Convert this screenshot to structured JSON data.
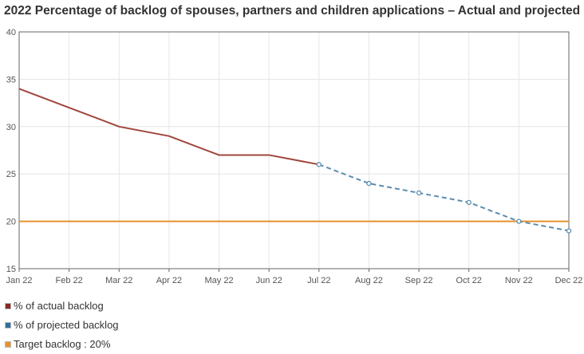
{
  "title": "2022 Percentage of backlog of spouses, partners and children applications – Actual and projected",
  "chart_data": {
    "type": "line",
    "categories": [
      "Jan 22",
      "Feb 22",
      "Mar 22",
      "Apr 22",
      "May 22",
      "Jun 22",
      "Jul 22",
      "Aug 22",
      "Sep 22",
      "Oct 22",
      "Nov 22",
      "Dec 22"
    ],
    "ylim": [
      15,
      40
    ],
    "yticks": [
      15,
      20,
      25,
      30,
      35,
      40
    ],
    "grid": true,
    "series": [
      {
        "name": "% of actual backlog",
        "color": "#a0463e",
        "style": "solid",
        "values": [
          34,
          32,
          30,
          29,
          27,
          27,
          26,
          null,
          null,
          null,
          null,
          null
        ]
      },
      {
        "name": "% of projected backlog",
        "color": "#5b8db0",
        "style": "dashed",
        "markers": true,
        "values": [
          null,
          null,
          null,
          null,
          null,
          null,
          26,
          24,
          23,
          22,
          20,
          19
        ]
      }
    ],
    "target": {
      "label": "Target backlog : 20%",
      "value": 20,
      "color": "#e8912c"
    }
  },
  "legend": {
    "actual_label": "% of actual backlog",
    "actual_color": "#8b2a22",
    "projected_label": "% of projected backlog",
    "projected_color": "#2f6f9e",
    "target_label": "Target backlog : 20%",
    "target_color": "#e8912c"
  }
}
